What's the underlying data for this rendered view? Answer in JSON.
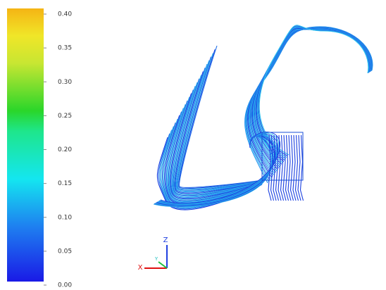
{
  "colorbar": {
    "lim": [
      0,
      0.4
    ],
    "ticks": [
      {
        "value": 0.4,
        "label": "0.40"
      },
      {
        "value": 0.35,
        "label": "0.35"
      },
      {
        "value": 0.3,
        "label": "0.30"
      },
      {
        "value": 0.25,
        "label": "0.25"
      },
      {
        "value": 0.2,
        "label": "0.20"
      },
      {
        "value": 0.15,
        "label": "0.15"
      },
      {
        "value": 0.1,
        "label": "0.10"
      },
      {
        "value": 0.05,
        "label": "0.05"
      },
      {
        "value": 0,
        "label": "0.00"
      }
    ]
  },
  "triad": {
    "x": "X",
    "y": "Y",
    "z": "Z"
  }
}
